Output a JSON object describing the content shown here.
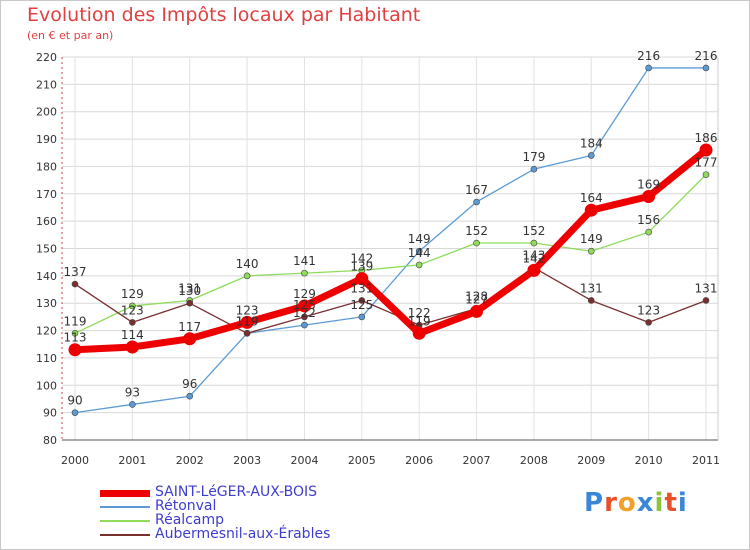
{
  "chart_data": {
    "type": "line",
    "title": "Evolution des Impôts locaux par Habitant",
    "subtitle": "(en € et par an)",
    "xlabel": "",
    "ylabel": "",
    "ylim": [
      80,
      220
    ],
    "yticks": [
      80,
      90,
      100,
      110,
      120,
      130,
      140,
      150,
      160,
      170,
      180,
      190,
      200,
      210,
      220
    ],
    "categories": [
      "2000",
      "2001",
      "2002",
      "2003",
      "2004",
      "2005",
      "2006",
      "2007",
      "2008",
      "2009",
      "2010",
      "2011"
    ],
    "grid": true,
    "legend_position": "bottom-left",
    "series": [
      {
        "name": "Rétonval",
        "color": "#5b9bd5",
        "values": [
          90,
          93,
          96,
          119,
          122,
          125,
          149,
          167,
          179,
          184,
          216,
          216
        ],
        "labels": [
          "90",
          "93",
          "96",
          "119",
          "122",
          "125",
          "149",
          "167",
          "179",
          "184",
          "216",
          "216"
        ]
      },
      {
        "name": "Réalcamp",
        "color": "#8edc5a",
        "values": [
          119,
          129,
          131,
          140,
          141,
          142,
          144,
          152,
          152,
          149,
          156,
          177
        ],
        "labels": [
          "119",
          "129",
          "131",
          "140",
          "141",
          "142",
          "144",
          "152",
          "152",
          "149",
          "156",
          "177"
        ]
      },
      {
        "name": "Aubermesnil-aux-Érables",
        "color": "#7a2f2f",
        "values": [
          137,
          123,
          130,
          119,
          125,
          131,
          122,
          128,
          143,
          131,
          123,
          131
        ],
        "labels": [
          "137",
          "123",
          "130",
          "119",
          "125",
          "131",
          "122",
          "128",
          "143",
          "131",
          "123",
          "131"
        ]
      },
      {
        "name": "SAINT-LéGER-AUX-BOIS",
        "color": "#ee0000",
        "values": [
          113,
          114,
          117,
          123,
          129,
          139,
          119,
          127,
          142,
          164,
          169,
          186
        ],
        "labels": [
          "113",
          "114",
          "117",
          "123",
          "129",
          "139",
          "119",
          "127",
          "142",
          "164",
          "169",
          "186"
        ]
      }
    ],
    "legend_order": [
      "SAINT-LéGER-AUX-BOIS",
      "Rétonval",
      "Réalcamp",
      "Aubermesnil-aux-Érables"
    ]
  },
  "logo": {
    "letters": [
      "P",
      "r",
      "o",
      "x",
      "i",
      "t",
      "i"
    ],
    "colors": [
      "#3a86d8",
      "#e8502a",
      "#f2a02a",
      "#3a86d8",
      "#8ac43a",
      "#e8502a",
      "#3a86d8"
    ]
  }
}
